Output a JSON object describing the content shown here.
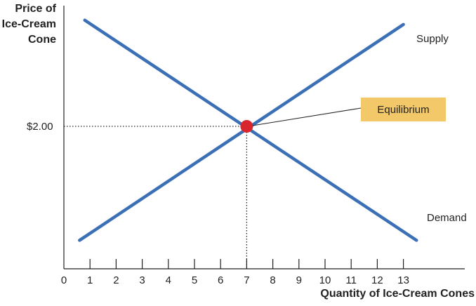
{
  "chart_data": {
    "type": "line",
    "ylabel_lines": [
      "Price of",
      "Ice-Cream",
      "Cone"
    ],
    "xlabel": "Quantity of Ice-Cream Cones",
    "x_ticks": [
      0,
      1,
      2,
      3,
      4,
      5,
      6,
      7,
      8,
      9,
      10,
      11,
      12,
      13
    ],
    "y_tick_label": "$2.00",
    "xlim": [
      0,
      15
    ],
    "grid": false,
    "series": [
      {
        "name": "Supply",
        "color": "#3b6fb6",
        "points": [
          [
            0.6,
            0.4
          ],
          [
            13.0,
            3.43
          ]
        ]
      },
      {
        "name": "Demand",
        "color": "#3b6fb6",
        "points": [
          [
            0.8,
            3.49
          ],
          [
            13.5,
            0.4
          ]
        ]
      }
    ],
    "equilibrium": {
      "label": "Equilibrium",
      "quantity": 7,
      "price": 2.0,
      "marker_color": "#d9262e"
    },
    "annotation_color": "#f2c868"
  }
}
